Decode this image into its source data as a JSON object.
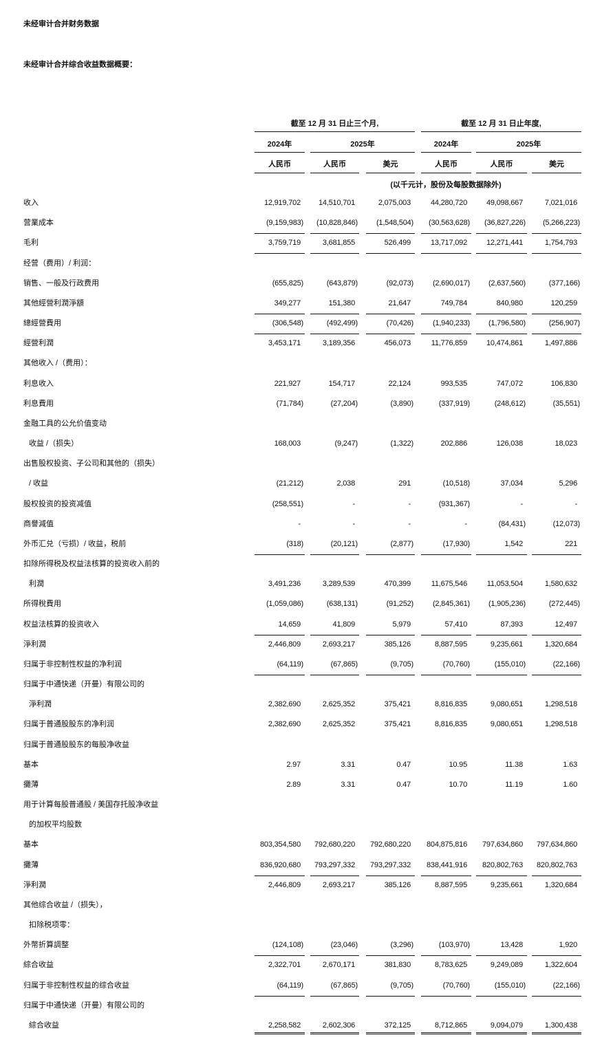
{
  "title": "未经审计合并财务数据",
  "subtitle": "未经审计合并综合收益数据概要：",
  "header": {
    "period_three_months": "截至 12 月 31 日止三个月,",
    "period_year": "截至 12 月 31 日止年度,",
    "years": [
      "2024年",
      "2025年",
      "2024年",
      "2025年"
    ],
    "currencies": [
      "人民币",
      "人民币",
      "美元",
      "人民币",
      "人民币",
      "美元"
    ],
    "unit_note": "(以千元计，股份及每股数据除外)"
  },
  "rows": [
    {
      "label": "收入",
      "values": [
        "12,919,702",
        "14,510,701",
        "2,075,003",
        "44,280,720",
        "49,098,667",
        "7,021,016"
      ]
    },
    {
      "label": "营業成本",
      "values": [
        "(9,159,983)",
        "(10,828,846)",
        "(1,548,504)",
        "(30,563,628)",
        "(36,827,226)",
        "(5,266,223)"
      ]
    },
    {
      "label": "毛利",
      "values": [
        "3,759,719",
        "3,681,855",
        "526,499",
        "13,717,092",
        "12,271,441",
        "1,754,793"
      ]
    },
    {
      "label": "经营（费用）/ 利润：",
      "values": []
    },
    {
      "label": "销售、一般及行政费用",
      "values": [
        "(655,825)",
        "(643,879)",
        "(92,073)",
        "(2,690,017)",
        "(2,637,560)",
        "(377,166)"
      ]
    },
    {
      "label": "其他經營利潤淨額",
      "values": [
        "349,277",
        "151,380",
        "21,647",
        "749,784",
        "840,980",
        "120,259"
      ]
    },
    {
      "label": "總經營費用",
      "values": [
        "(306,548)",
        "(492,499)",
        "(70,426)",
        "(1,940,233)",
        "(1,796,580)",
        "(256,907)"
      ]
    },
    {
      "label": "經營利潤",
      "values": [
        "3,453,171",
        "3,189,356",
        "456,073",
        "11,776,859",
        "10,474,861",
        "1,497,886"
      ]
    },
    {
      "label": "其他收入 /（费用）：",
      "values": []
    },
    {
      "label": "利息收入",
      "values": [
        "221,927",
        "154,717",
        "22,124",
        "993,535",
        "747,072",
        "106,830"
      ]
    },
    {
      "label": "利息費用",
      "values": [
        "(71,784)",
        "(27,204)",
        "(3,890)",
        "(337,919)",
        "(248,612)",
        "(35,551)"
      ]
    },
    {
      "label": "金融工具的公允价值变动",
      "values": []
    },
    {
      "label": "收益 /（损失）",
      "indent": true,
      "values": [
        "168,003",
        "(9,247)",
        "(1,322)",
        "202,886",
        "126,038",
        "18,023"
      ]
    },
    {
      "label": "出售股权投资、子公司和其他的（损失）",
      "values": []
    },
    {
      "label": "/ 收益",
      "indent": true,
      "values": [
        "(21,212)",
        "2,038",
        "291",
        "(10,518)",
        "37,034",
        "5,296"
      ]
    },
    {
      "label": "股权投资的投资减值",
      "values": [
        "(258,551)",
        "-",
        "-",
        "(931,367)",
        "-",
        "-"
      ]
    },
    {
      "label": "商譽減值",
      "values": [
        "-",
        "-",
        "-",
        "-",
        "(84,431)",
        "(12,073)"
      ]
    },
    {
      "label": "外币汇兑（亏损）/ 收益，税前",
      "values": [
        "(318)",
        "(20,121)",
        "(2,877)",
        "(17,930)",
        "1,542",
        "221"
      ]
    },
    {
      "label": "扣除所得税及权益法核算的投资收入前的",
      "values": []
    },
    {
      "label": "利潤",
      "indent": true,
      "values": [
        "3,491,236",
        "3,289,539",
        "470,399",
        "11,675,546",
        "11,053,504",
        "1,580,632"
      ]
    },
    {
      "label": "所得稅費用",
      "values": [
        "(1,059,086)",
        "(638,131)",
        "(91,252)",
        "(2,845,361)",
        "(1,905,236)",
        "(272,445)"
      ]
    },
    {
      "label": "权益法核算的投资收入",
      "values": [
        "14,659",
        "41,809",
        "5,979",
        "57,410",
        "87,393",
        "12,497"
      ]
    },
    {
      "label": "淨利潤",
      "values": [
        "2,446,809",
        "2,693,217",
        "385,126",
        "8,887,595",
        "9,235,661",
        "1,320,684"
      ]
    },
    {
      "label": "归属于非控制性权益的净利润",
      "values": [
        "(64,119)",
        "(67,865)",
        "(9,705)",
        "(70,760)",
        "(155,010)",
        "(22,166)"
      ]
    },
    {
      "label": "归属于中通快递（开曼）有限公司的",
      "values": []
    },
    {
      "label": "淨利潤",
      "indent": true,
      "values": [
        "2,382,690",
        "2,625,352",
        "375,421",
        "8,816,835",
        "9,080,651",
        "1,298,518"
      ]
    },
    {
      "label": "归属于普通股股东的净利润",
      "values": [
        "2,382,690",
        "2,625,352",
        "375,421",
        "8,816,835",
        "9,080,651",
        "1,298,518"
      ]
    },
    {
      "label": "归属于普通股股东的每股净收益",
      "values": []
    },
    {
      "label": "基本",
      "values": [
        "2.97",
        "3.31",
        "0.47",
        "10.95",
        "11.38",
        "1.63"
      ]
    },
    {
      "label": "攤薄",
      "values": [
        "2.89",
        "3.31",
        "0.47",
        "10.70",
        "11.19",
        "1.60"
      ]
    },
    {
      "label": "用于计算每股普通股 / 美国存托股净收益",
      "values": []
    },
    {
      "label": "的加权平均股数",
      "indent": true,
      "values": []
    },
    {
      "label": "基本",
      "values": [
        "803,354,580",
        "792,680,220",
        "792,680,220",
        "804,875,816",
        "797,634,860",
        "797,634,860"
      ]
    },
    {
      "label": "攤薄",
      "values": [
        "836,920,680",
        "793,297,332",
        "793,297,332",
        "838,441,916",
        "820,802,763",
        "820,802,763"
      ]
    },
    {
      "label": "淨利潤",
      "values": [
        "2,446,809",
        "2,693,217",
        "385,126",
        "8,887,595",
        "9,235,661",
        "1,320,684"
      ]
    },
    {
      "label": "其他综合收益 /（损失），",
      "values": []
    },
    {
      "label": "扣除税项零：",
      "indent": true,
      "values": []
    },
    {
      "label": "外幣折算調整",
      "values": [
        "(124,108)",
        "(23,046)",
        "(3,296)",
        "(103,970)",
        "13,428",
        "1,920"
      ]
    },
    {
      "label": "綜合收益",
      "values": [
        "2,322,701",
        "2,670,171",
        "381,830",
        "8,783,625",
        "9,249,089",
        "1,322,604"
      ]
    },
    {
      "label": "归属于非控制性权益的综合收益",
      "values": [
        "(64,119)",
        "(67,865)",
        "(9,705)",
        "(70,760)",
        "(155,010)",
        "(22,166)"
      ]
    },
    {
      "label": "归属于中通快递（开曼）有限公司的",
      "values": []
    },
    {
      "label": "綜合收益",
      "indent": true,
      "values": [
        "2,258,582",
        "2,602,306",
        "372,125",
        "8,712,865",
        "9,094,079",
        "1,300,438"
      ]
    }
  ]
}
